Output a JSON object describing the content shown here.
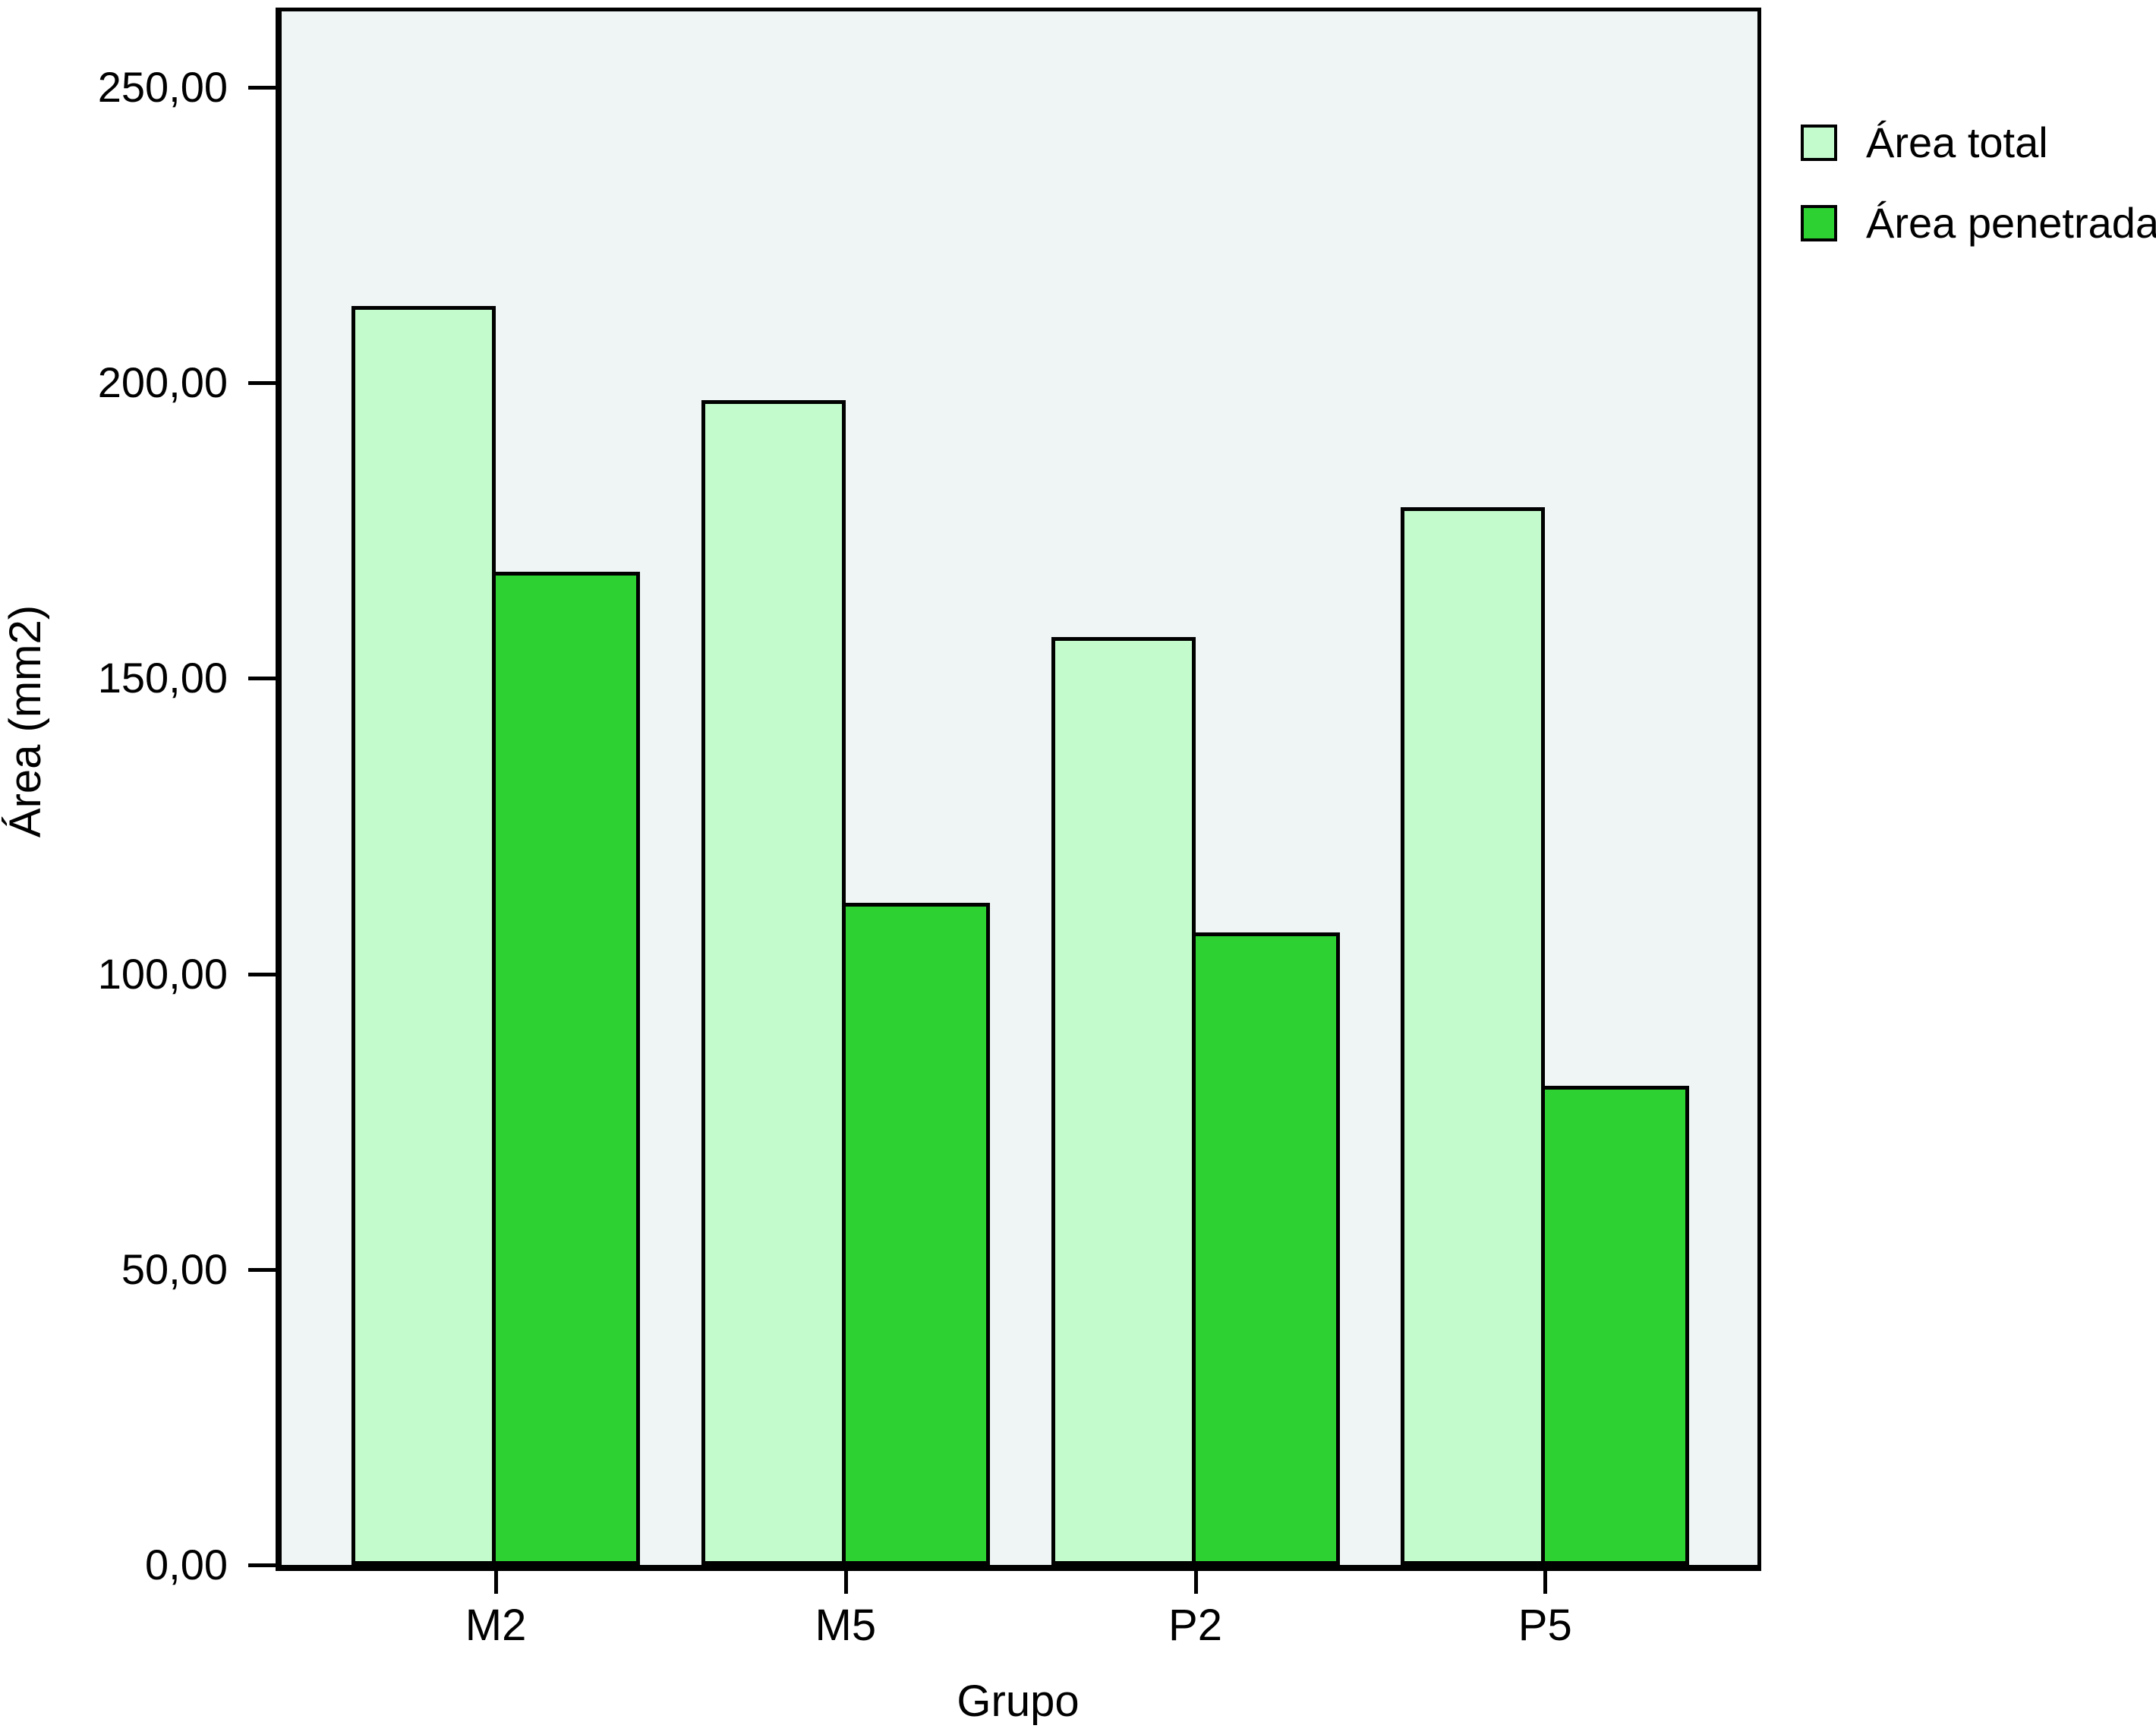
{
  "chart_data": {
    "type": "bar",
    "title": "",
    "categories": [
      "M2",
      "M5",
      "P2",
      "P5"
    ],
    "series": [
      {
        "name": "Área total",
        "color": "#c3fbcc",
        "values": [
          213,
          197,
          157,
          179
        ]
      },
      {
        "name": "Área penetrada",
        "color": "#2dd232",
        "values": [
          168,
          112,
          107,
          81
        ]
      }
    ],
    "xlabel": "Grupo",
    "ylabel": "Área (mm2)",
    "ylim": [
      0,
      262.7
    ],
    "yticks": [
      {
        "value": 0,
        "label": "0,00"
      },
      {
        "value": 50,
        "label": "50,00"
      },
      {
        "value": 100,
        "label": "100,00"
      },
      {
        "value": 150,
        "label": "150,00"
      },
      {
        "value": 200,
        "label": "200,00"
      },
      {
        "value": 250,
        "label": "250,00"
      }
    ],
    "grid": false,
    "legend_position": "outside-top-right",
    "plot_background": "#eff4f5",
    "bar_border_color": "#000000",
    "axis_color": "#000000"
  }
}
